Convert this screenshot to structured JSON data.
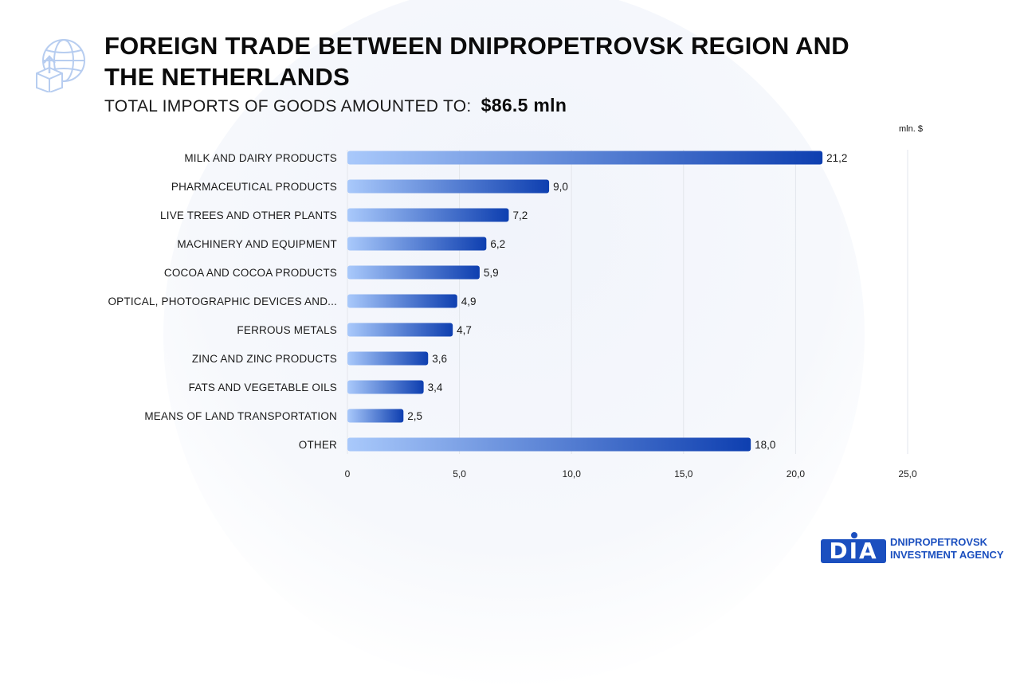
{
  "header": {
    "title_line1": "FOREIGN TRADE BETWEEN DNIPROPETROVSK REGION AND",
    "title_line2": "THE NETHERLANDS",
    "subtitle_label": "TOTAL IMPORTS OF GOODS AMOUNTED TO:",
    "subtitle_value": "$86.5  mln",
    "icon": "globe-export-icon"
  },
  "logo": {
    "mark": "DIA",
    "line1": "DNIPROPETROVSK",
    "line2": "INVESTMENT AGENCY"
  },
  "colors": {
    "bar_start": "#a9c9fb",
    "bar_end": "#0e3fb0",
    "brand": "#1b4fbf"
  },
  "chart_data": {
    "type": "bar",
    "orientation": "horizontal",
    "unit_label": "mln. $",
    "categories": [
      "MILK AND DAIRY PRODUCTS",
      "PHARMACEUTICAL PRODUCTS",
      "LIVE TREES AND OTHER PLANTS",
      "MACHINERY AND EQUIPMENT",
      "COCOA AND COCOA PRODUCTS",
      "OPTICAL, PHOTOGRAPHIC DEVICES AND...",
      "FERROUS METALS",
      "ZINC AND ZINC PRODUCTS",
      "FATS AND VEGETABLE OILS",
      "MEANS OF LAND TRANSPORTATION",
      "OTHER"
    ],
    "values": [
      21.2,
      9.0,
      7.2,
      6.2,
      5.9,
      4.9,
      4.7,
      3.6,
      3.4,
      2.5,
      18.0
    ],
    "value_labels": [
      "21,2",
      "9,0",
      "7,2",
      "6,2",
      "5,9",
      "4,9",
      "4,7",
      "3,6",
      "3,4",
      "2,5",
      "18,0"
    ],
    "xlim": [
      0,
      25
    ],
    "x_ticks": [
      0,
      5,
      10,
      15,
      20,
      25
    ],
    "x_tick_labels": [
      "0",
      "5,0",
      "10,0",
      "15,0",
      "20,0",
      "25,0"
    ],
    "grid": true
  }
}
